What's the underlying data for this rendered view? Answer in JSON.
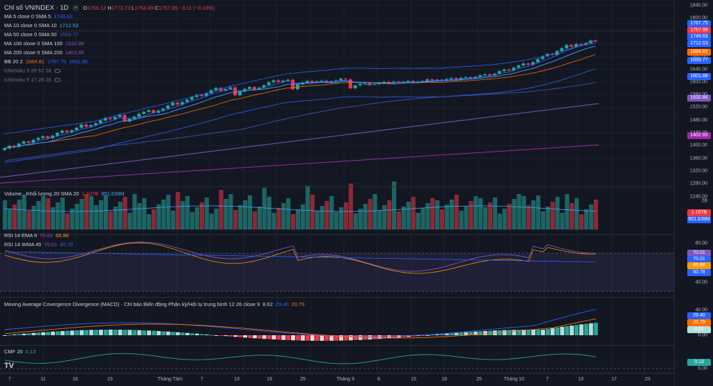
{
  "header": {
    "symbol_title": "Chỉ số VNINDEX · 1D",
    "open_label": "O",
    "open": "1766.12",
    "high_label": "H",
    "high": "1773.73",
    "low_label": "L",
    "low": "1754.89",
    "close_label": "C",
    "close": "1757.95",
    "change": "−3.11 (−0.18%)"
  },
  "indicators": [
    {
      "name": "MA 5 close 0 SMA 5",
      "value": "1749.63",
      "color": "#2962ff"
    },
    {
      "name": "MA 10 close 0 SMA 10",
      "value": "1712.53",
      "color": "#42a5f5"
    },
    {
      "name": "MA 50 close 0 SMA 50",
      "value": "1659.77",
      "color": "#3f51b5"
    },
    {
      "name": "MA 100 close 0 SMA 100",
      "value": "1532.86",
      "color": "#7e57c2"
    },
    {
      "name": "MA 200 close 0 SMA 200",
      "value": "1402.65",
      "color": "#ab47bc"
    }
  ],
  "bb": {
    "name": "BB 20 2",
    "v1": "1684.81",
    "v2": "1767.75",
    "v3": "1601.88"
  },
  "ichimoku": [
    {
      "name": "Ichimoku 9 26 52 26"
    },
    {
      "name": "Ichimoku 9 17 26 26"
    }
  ],
  "price_ticks": [
    "1840.00",
    "1800.00",
    "1760.00",
    "1720.00",
    "1680.00",
    "1640.00",
    "1600.00",
    "1560.00",
    "1520.00",
    "1480.00",
    "1440.00",
    "1400.00",
    "1360.00",
    "1320.00",
    "1280.00",
    "1240.00"
  ],
  "price_tags": [
    {
      "text": "1767.75",
      "color": "#2962ff"
    },
    {
      "text": "1757.95",
      "color": "#f23645"
    },
    {
      "text": "1749.63",
      "color": "#2962ff"
    },
    {
      "text": "1712.53",
      "color": "#2962ff"
    },
    {
      "text": "1684.81",
      "color": "#ff6d00"
    },
    {
      "text": "1659.77",
      "color": "#2962ff"
    },
    {
      "text": "1601.88",
      "color": "#2962ff"
    },
    {
      "text": "1532.86",
      "color": "#7e57c2"
    },
    {
      "text": "1402.65",
      "color": "#9c27b0"
    }
  ],
  "volume": {
    "title": "Volume · Khối lượng 20 SMA 20",
    "v1": "1.107B",
    "v2": "951.639M",
    "tick": "2B",
    "tag1": "1.107B",
    "tag2": "951.639M"
  },
  "rsi": {
    "title1": "RSI 14 EMA 9",
    "v1a": "70.01",
    "v1b": "65.88",
    "title2": "RSI 14 WMA 45",
    "v2a": "70.01",
    "v2b": "60.78",
    "ticks": [
      "80.00",
      "60.00",
      "40.00"
    ],
    "tags": [
      {
        "text": "70.01",
        "color": "#7e57c2"
      },
      {
        "text": "70.01",
        "color": "#2962ff"
      },
      {
        "text": "65.88",
        "color": "#ff9800"
      },
      {
        "text": "60.78",
        "color": "#2962ff"
      }
    ]
  },
  "macd": {
    "title": "Moving Average Covergence Divergence (MACD) · Chỉ báo Biến động Phân kỳ/Hội tụ trung bình 12 26 close 9",
    "v1": "8.62",
    "v2": "29.40",
    "v3": "20.79",
    "ticks": [
      "40.00",
      "20.00",
      "0.00"
    ],
    "tags": [
      {
        "text": "29.40",
        "color": "#2962ff"
      },
      {
        "text": "20.79",
        "color": "#ff6d00"
      },
      {
        "text": "8.62",
        "color": "#b2dfdb"
      }
    ]
  },
  "cmf": {
    "title": "CMF 20",
    "value": "0.13",
    "ticks": [
      "0.00"
    ],
    "tag": "0.13"
  },
  "time_labels": [
    "7",
    "11",
    "16",
    "23",
    "Tháng Tám",
    "7",
    "13",
    "19",
    "25",
    "Tháng 9",
    "8",
    "15",
    "19",
    "25",
    "Tháng 10",
    "7",
    "13",
    "17",
    "23"
  ],
  "colors": {
    "up": "#26a69a",
    "down": "#f23645",
    "bg": "#131722"
  }
}
